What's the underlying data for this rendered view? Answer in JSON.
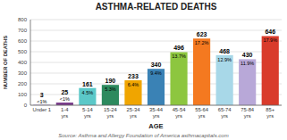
{
  "chart_data": {
    "type": "bar",
    "title": "ASTHMA-RELATED DEATHS",
    "x_label": "AGE",
    "y_label": "NUMBER OF DEATHS",
    "source": "Source: Asthma and Allergy Foundation of America asthmacapitals.com",
    "categories": [
      "Under 1",
      "1-4\nyrs",
      "5-14\nyrs",
      "15-24\nyrs",
      "25-34\nyrs",
      "35-44\nyrs",
      "45-54\nyrs",
      "55-64\nyrs",
      "65-74\nyrs",
      "75-84\nyrs",
      "85+\nyrs"
    ],
    "values": [
      3,
      25,
      161,
      190,
      233,
      340,
      496,
      623,
      468,
      430,
      646
    ],
    "percentages": [
      "<1%",
      "<1%",
      "4.5%",
      "5.3%",
      "6.4%",
      "9.4%",
      "13.7%",
      "17.2%",
      "12.9%",
      "11.9%",
      "17.9%"
    ],
    "colors": [
      "#7b5ea7",
      "#7b3f8c",
      "#5bc8c8",
      "#2d8a5e",
      "#f0a500",
      "#3a82b5",
      "#8dc63f",
      "#f47920",
      "#a8d8e8",
      "#b8a8d8",
      "#d93b2b"
    ],
    "ylim": [
      0,
      800
    ],
    "yticks": [
      0,
      100,
      200,
      300,
      400,
      500,
      600,
      700,
      800
    ],
    "grid": true,
    "data_labels": true
  }
}
